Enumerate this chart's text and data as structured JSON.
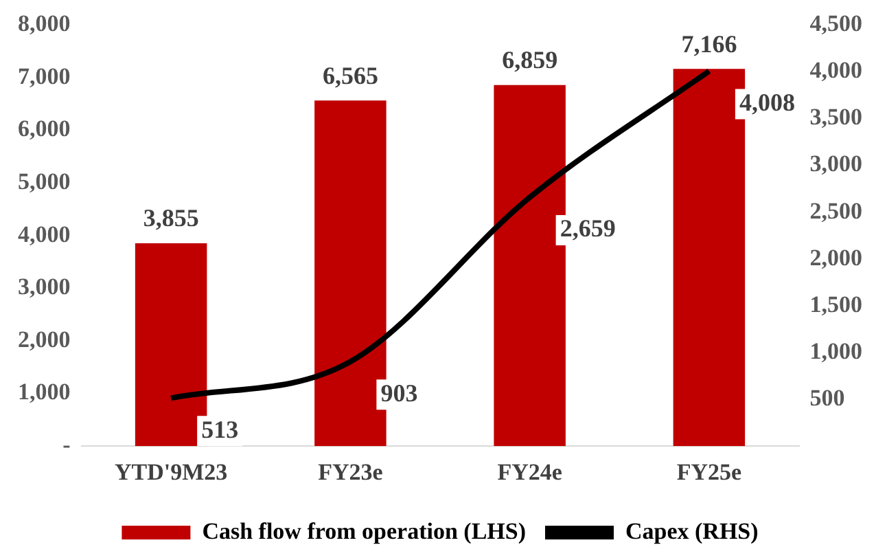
{
  "chart_data": {
    "type": "bar",
    "categories": [
      "YTD'9M23",
      "FY23e",
      "FY24e",
      "FY25e"
    ],
    "series": [
      {
        "name": "Cash flow from operation (LHS)",
        "color": "#c00000",
        "values": [
          3855,
          6565,
          6859,
          7166
        ],
        "value_labels": [
          "3,855",
          "6,565",
          "6,859",
          "7,166"
        ]
      },
      {
        "name": "Capex (RHS)",
        "type": "line",
        "axis": "y2",
        "color": "#000000",
        "values": [
          513,
          903,
          2659,
          4008
        ],
        "value_labels": [
          "513",
          "903",
          "2,659",
          "4,008"
        ]
      }
    ],
    "ylim": [
      0,
      8000
    ],
    "yticks": [
      {
        "value": 0,
        "label": "-"
      },
      {
        "value": 1000,
        "label": "1,000"
      },
      {
        "value": 2000,
        "label": "2,000"
      },
      {
        "value": 3000,
        "label": "3,000"
      },
      {
        "value": 4000,
        "label": "4,000"
      },
      {
        "value": 5000,
        "label": "5,000"
      },
      {
        "value": 6000,
        "label": "6,000"
      },
      {
        "value": 7000,
        "label": "7,000"
      },
      {
        "value": 8000,
        "label": "8,000"
      }
    ],
    "y2lim": [
      0,
      4500
    ],
    "y2ticks": [
      {
        "value": 0,
        "label": null
      },
      {
        "value": 500,
        "label": "500"
      },
      {
        "value": 1000,
        "label": "1,000"
      },
      {
        "value": 1500,
        "label": "1,500"
      },
      {
        "value": 2000,
        "label": "2,000"
      },
      {
        "value": 2500,
        "label": "2,500"
      },
      {
        "value": 3000,
        "label": "3,000"
      },
      {
        "value": 3500,
        "label": "3,500"
      },
      {
        "value": 4000,
        "label": "4,000"
      },
      {
        "value": 4500,
        "label": "4,500"
      }
    ],
    "grid": false,
    "legend": "bottom",
    "marker": "none",
    "line_style": "solid"
  }
}
